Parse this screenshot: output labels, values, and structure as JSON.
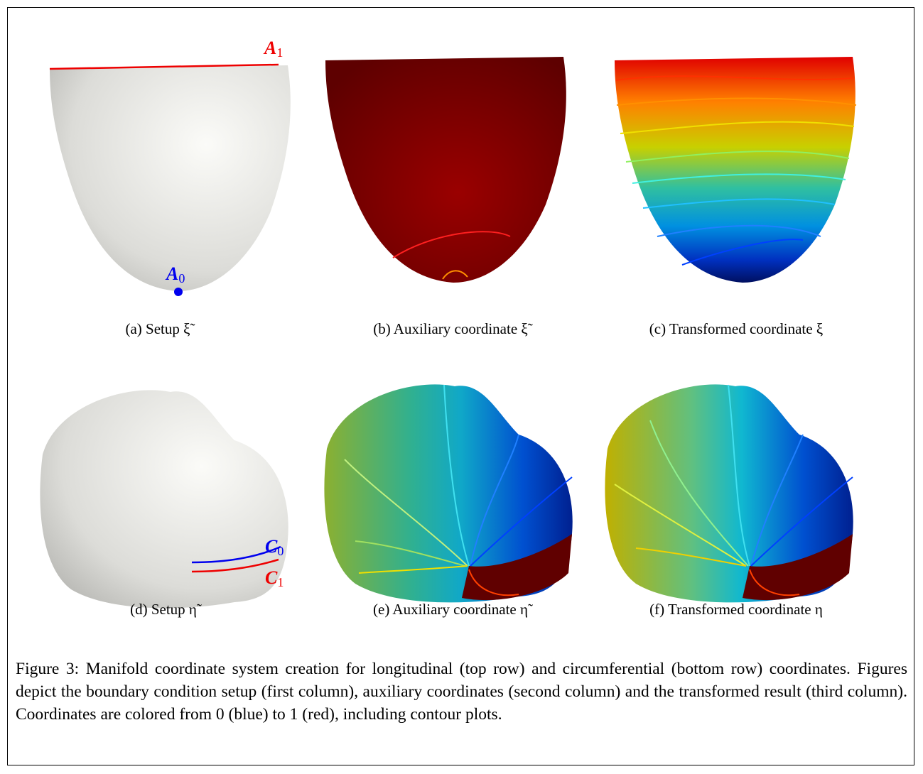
{
  "figure": {
    "panels": [
      {
        "caption": "(a) Setup ξ̃",
        "labels": [
          {
            "letter": "A",
            "sub": "1"
          },
          {
            "letter": "A",
            "sub": "0"
          }
        ]
      },
      {
        "caption": "(b) Auxiliary coordinate ξ̃"
      },
      {
        "caption": "(c) Transformed coordinate ξ"
      },
      {
        "caption": "(d) Setup η̃",
        "labels": [
          {
            "letter": "C",
            "sub": "0"
          },
          {
            "letter": "C",
            "sub": "1"
          }
        ]
      },
      {
        "caption": "(e) Auxiliary coordinate η̃"
      },
      {
        "caption": "(f) Transformed coordinate η"
      }
    ],
    "caption": "Figure 3: Manifold coordinate system creation for longitudinal (top row) and circumferential (bottom row) coordinates. Figures depict the boundary condition setup (first column), auxiliary coordinates (second column) and the transformed result (third column). Coordinates are colored from 0 (blue) to 1 (red), including contour plots."
  }
}
